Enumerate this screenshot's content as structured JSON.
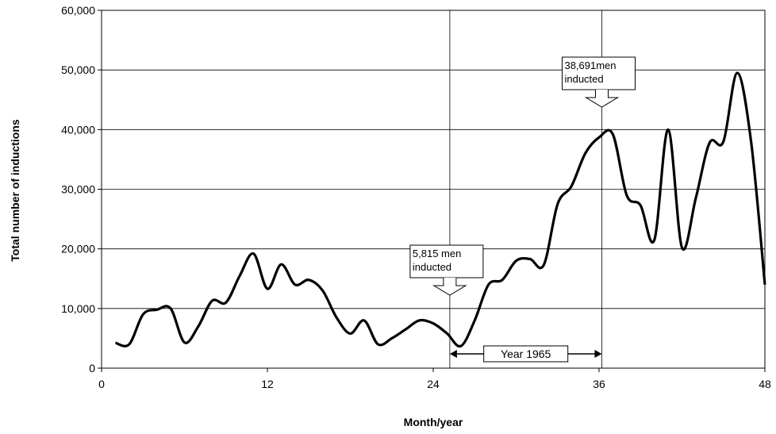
{
  "chart_data": {
    "type": "line",
    "x_label": "Month/year",
    "y_label": "Total number of inductions",
    "xlim": [
      0,
      48
    ],
    "xticks": [
      0,
      12,
      24,
      36,
      48
    ],
    "ylim": [
      0,
      60000
    ],
    "yticks": [
      0,
      {
        "value": 10000,
        "label": "10,000"
      },
      {
        "value": 20000,
        "label": "20,000"
      },
      {
        "value": 30000,
        "label": "30,000"
      },
      {
        "value": 40000,
        "label": "40,000"
      },
      {
        "value": 50000,
        "label": "50,000"
      },
      {
        "value": 60000,
        "label": "60,000"
      }
    ],
    "grid": true,
    "color": "#000000",
    "x": [
      1,
      2,
      3,
      4,
      5,
      6,
      7,
      8,
      9,
      10,
      11,
      12,
      13,
      14,
      15,
      16,
      17,
      18,
      19,
      20,
      21,
      22,
      23,
      24,
      25,
      26,
      27,
      28,
      29,
      30,
      31,
      32,
      33,
      34,
      35,
      36,
      37,
      38,
      39,
      40,
      41,
      42,
      43,
      44,
      45,
      46,
      47,
      48
    ],
    "values": [
      4250,
      4000,
      9000,
      9800,
      10000,
      4300,
      7000,
      11300,
      11000,
      15500,
      19200,
      13300,
      17400,
      14000,
      14800,
      13000,
      8500,
      5800,
      8000,
      4000,
      5000,
      6500,
      8000,
      7500,
      5815,
      3700,
      8000,
      14000,
      14800,
      18000,
      18300,
      17300,
      27500,
      30500,
      36000,
      38691,
      39200,
      29000,
      27300,
      21500,
      40000,
      20200,
      28500,
      37800,
      38000,
      49500,
      38000,
      14000
    ],
    "vlines": [
      25.2,
      36.2
    ],
    "annotations": [
      {
        "x": 25.2,
        "lines": [
          "5,815 men",
          "inducted"
        ]
      },
      {
        "x": 36.2,
        "lines": [
          "38,691men",
          "inducted"
        ]
      }
    ],
    "span": {
      "x": [
        25.2,
        36.2
      ],
      "y": 2400,
      "label": "Year 1965"
    }
  }
}
